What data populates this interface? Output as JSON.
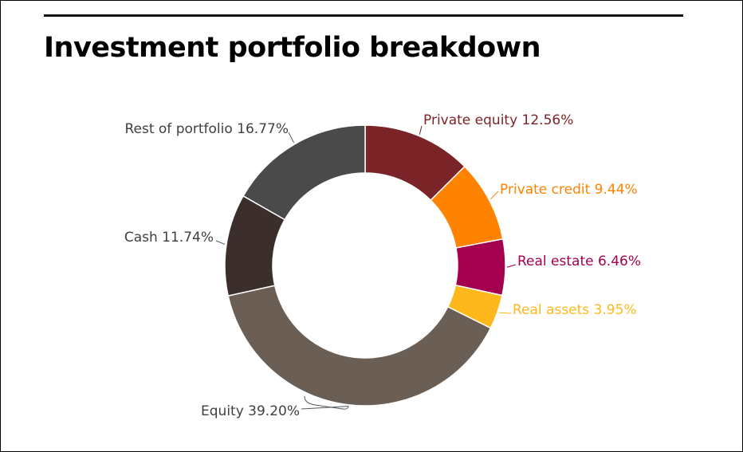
{
  "chart_data": {
    "type": "pie",
    "title": "Investment portfolio breakdown",
    "donut": true,
    "slices": [
      {
        "label": "Private equity",
        "value": 12.56,
        "display": "Private equity  12.56%",
        "color": "#7b2428"
      },
      {
        "label": "Private credit",
        "value": 9.44,
        "display": "Private credit  9.44%",
        "color": "#ff8200"
      },
      {
        "label": "Real estate",
        "value": 6.46,
        "display": "Real estate  6.46%",
        "color": "#a50050"
      },
      {
        "label": "Real assets",
        "value": 3.95,
        "display": "Real assets  3.95%",
        "color": "#ffb81c"
      },
      {
        "label": "Equity",
        "value": 39.2,
        "display": "Equity 39.20%",
        "color": "#6b5e55"
      },
      {
        "label": "Cash",
        "value": 11.74,
        "display": "Cash  11.74%",
        "color": "#3b2e2b"
      },
      {
        "label": "Rest of portfolio",
        "value": 16.77,
        "display": "Rest of portfolio 16.77%",
        "color": "#4a4a4a"
      }
    ]
  }
}
